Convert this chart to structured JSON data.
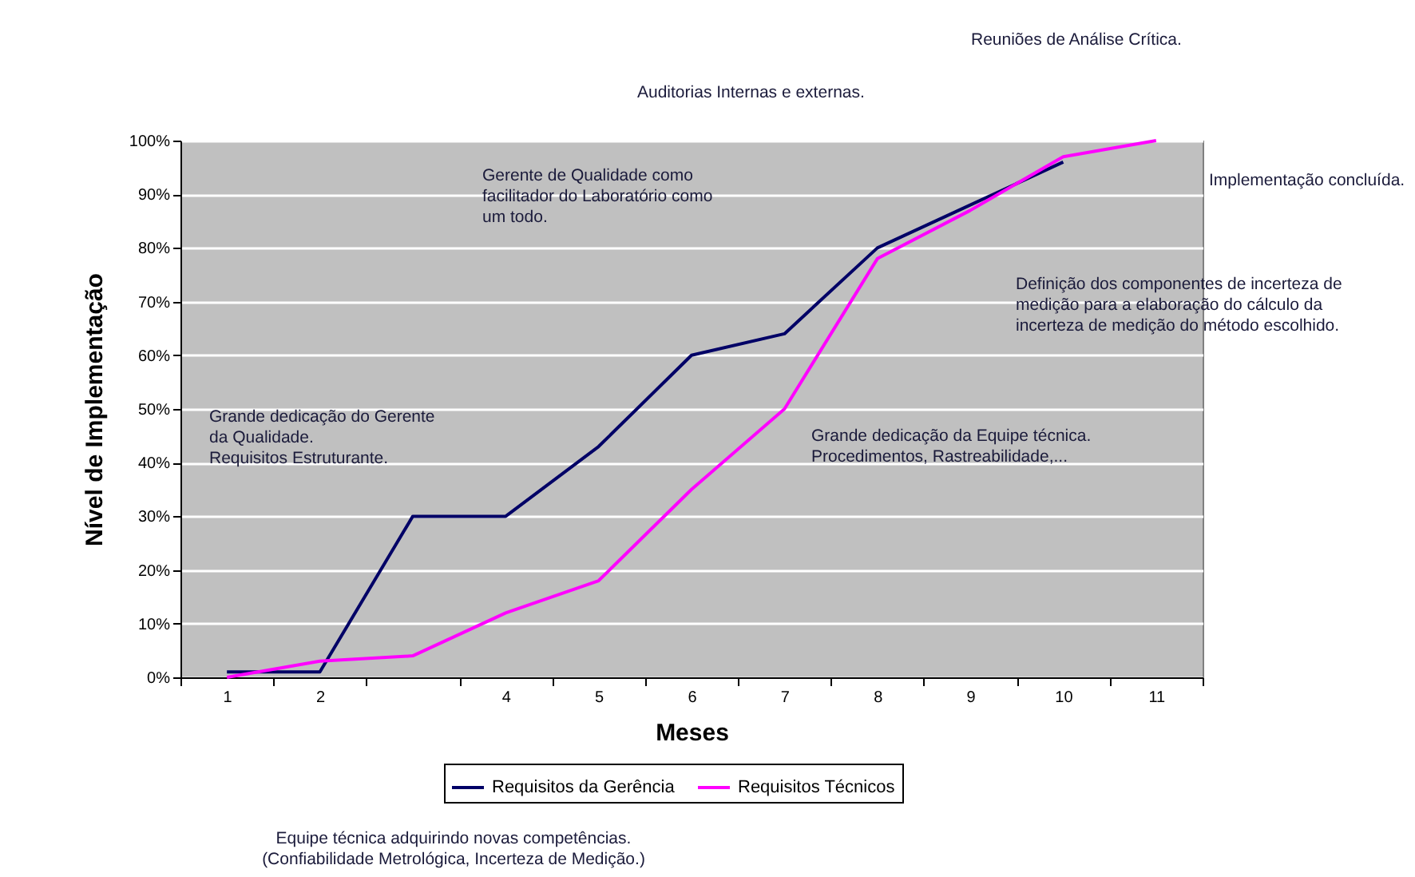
{
  "chart_data": {
    "type": "line",
    "xlabel": "Meses",
    "ylabel": "Nível de Implementação",
    "categories": [
      "1",
      "2",
      null,
      "4",
      "5",
      "6",
      "7",
      "8",
      "9",
      "10",
      "11"
    ],
    "series": [
      {
        "name": "Requisitos da Gerência",
        "color": "#000066",
        "values": [
          1,
          1,
          30,
          30,
          43,
          60,
          64,
          80,
          88,
          96,
          null
        ]
      },
      {
        "name": "Requisitos Técnicos",
        "color": "#ff00ff",
        "values": [
          0,
          3,
          4,
          12,
          18,
          35,
          50,
          78,
          87,
          97,
          100
        ]
      }
    ],
    "ylim": [
      0,
      100
    ],
    "yticks": [
      {
        "value": 0,
        "label": "0%"
      },
      {
        "value": 10,
        "label": "10%"
      },
      {
        "value": 20,
        "label": "20%"
      },
      {
        "value": 30,
        "label": "30%"
      },
      {
        "value": 40,
        "label": "40%"
      },
      {
        "value": 50,
        "label": "50%"
      },
      {
        "value": 60,
        "label": "60%"
      },
      {
        "value": 70,
        "label": "70%"
      },
      {
        "value": 80,
        "label": "80%"
      },
      {
        "value": 90,
        "label": "90%"
      },
      {
        "value": 100,
        "label": "100%"
      }
    ],
    "grid": "y",
    "legend": "bottom",
    "marker": "none",
    "line_style": "solid",
    "annotations": [
      "Grande dedicação do Gerente\nda Qualidade.\nRequisitos Estruturante.",
      "Gerente de Qualidade como\nfacilitador do Laboratório como\num todo.",
      "Auditorias Internas e externas.",
      "Reuniões de Análise Crítica.",
      "Implementação concluída.",
      "Definição dos componentes de incerteza de\nmedição para a elaboração do cálculo da\nincerteza de medição do método escolhido.",
      "Grande dedicação da Equipe técnica.\nProcedimentos, Rastreabilidade,...",
      "Equipe técnica adquirindo novas competências.\n(Confiabilidade Metrológica, Incerteza de Medição.)"
    ]
  }
}
